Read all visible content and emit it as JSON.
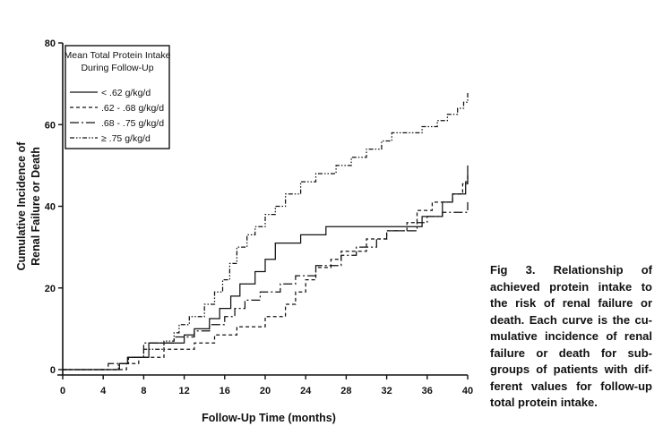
{
  "caption": "Fig 3. Relationship of achieved protein intake to the risk of renal failure or death. Each curve is the cu-mulative incidence of renal failure or death for sub-groups of patients with dif-ferent values for follow-up total protein intake.",
  "chart_data": {
    "type": "line",
    "step": true,
    "xlabel": "Follow-Up Time (months)",
    "ylabel_line1": "Cumulative Incidence of",
    "ylabel_line2": "Renal Failure or Death",
    "xlim": [
      0,
      40
    ],
    "ylim": [
      0,
      80
    ],
    "x_ticks": [
      0,
      4,
      8,
      12,
      16,
      20,
      24,
      28,
      32,
      36,
      40
    ],
    "y_ticks": [
      0,
      20,
      40,
      60,
      80
    ],
    "grid": false,
    "legend": {
      "title_line1": "Mean Total Protein Intake",
      "title_line2": "During Follow-Up",
      "placement": "top-left"
    },
    "series": [
      {
        "name": "< .62 g/kg/d",
        "dash": "solid",
        "points": [
          [
            0,
            0
          ],
          [
            5.6,
            0
          ],
          [
            5.6,
            1.5
          ],
          [
            6.4,
            1.5
          ],
          [
            6.4,
            3
          ],
          [
            8.5,
            3
          ],
          [
            8.5,
            6.5
          ],
          [
            12,
            6.5
          ],
          [
            12,
            8.5
          ],
          [
            13,
            8.5
          ],
          [
            13,
            10
          ],
          [
            14.5,
            10
          ],
          [
            14.5,
            12.5
          ],
          [
            15.5,
            12.5
          ],
          [
            15.5,
            15
          ],
          [
            16.6,
            15
          ],
          [
            16.6,
            18
          ],
          [
            17.5,
            18
          ],
          [
            17.5,
            21
          ],
          [
            19,
            21
          ],
          [
            19,
            24
          ],
          [
            20,
            24
          ],
          [
            20,
            27
          ],
          [
            21,
            27
          ],
          [
            21,
            31
          ],
          [
            23.5,
            31
          ],
          [
            23.5,
            33
          ],
          [
            26,
            33
          ],
          [
            26,
            35
          ],
          [
            35.5,
            35
          ],
          [
            35.5,
            37.5
          ],
          [
            37.5,
            37.5
          ],
          [
            37.5,
            41
          ],
          [
            38.5,
            41
          ],
          [
            38.5,
            43
          ],
          [
            39.8,
            43
          ],
          [
            39.8,
            46
          ],
          [
            40,
            46
          ],
          [
            40,
            50
          ]
        ]
      },
      {
        "name": ".62 - .68 g/kg/d",
        "dash": "4,3",
        "points": [
          [
            0,
            0
          ],
          [
            6.3,
            0
          ],
          [
            6.3,
            1.5
          ],
          [
            7.5,
            1.5
          ],
          [
            7.5,
            3
          ],
          [
            10,
            3
          ],
          [
            10,
            5
          ],
          [
            13,
            5
          ],
          [
            13,
            6.5
          ],
          [
            15,
            6.5
          ],
          [
            15,
            8.5
          ],
          [
            17.2,
            8.5
          ],
          [
            17.2,
            10.5
          ],
          [
            20,
            10.5
          ],
          [
            20,
            13
          ],
          [
            22,
            13
          ],
          [
            22,
            16
          ],
          [
            23,
            16
          ],
          [
            23,
            19
          ],
          [
            24,
            19
          ],
          [
            24,
            22
          ],
          [
            25,
            22
          ],
          [
            25,
            25
          ],
          [
            26.5,
            25
          ],
          [
            26.5,
            27
          ],
          [
            27.5,
            27
          ],
          [
            27.5,
            29
          ],
          [
            30,
            29
          ],
          [
            30,
            32
          ],
          [
            32,
            32
          ],
          [
            32,
            34
          ],
          [
            34,
            34
          ],
          [
            34,
            36
          ],
          [
            35,
            36
          ],
          [
            35,
            39
          ],
          [
            36.5,
            39
          ],
          [
            36.5,
            41
          ],
          [
            38.5,
            41
          ],
          [
            38.5,
            43
          ],
          [
            39.5,
            43
          ],
          [
            39.5,
            45.5
          ],
          [
            40,
            45.5
          ],
          [
            40,
            48
          ]
        ]
      },
      {
        "name": ".68 - .75 g/kg/d",
        "dash": "10,3,2,3",
        "points": [
          [
            0,
            0
          ],
          [
            4.5,
            0
          ],
          [
            4.5,
            1.5
          ],
          [
            6.5,
            1.5
          ],
          [
            6.5,
            3
          ],
          [
            8,
            3
          ],
          [
            8,
            6.5
          ],
          [
            11,
            6.5
          ],
          [
            11,
            8
          ],
          [
            13,
            8
          ],
          [
            13,
            9.5
          ],
          [
            14.5,
            9.5
          ],
          [
            14.5,
            11
          ],
          [
            16,
            11
          ],
          [
            16,
            13
          ],
          [
            17,
            13
          ],
          [
            17,
            15
          ],
          [
            18,
            15
          ],
          [
            18,
            17
          ],
          [
            19.5,
            17
          ],
          [
            19.5,
            19
          ],
          [
            21.5,
            19
          ],
          [
            21.5,
            21
          ],
          [
            23,
            21
          ],
          [
            23,
            23
          ],
          [
            25,
            23
          ],
          [
            25,
            25.5
          ],
          [
            27.5,
            25.5
          ],
          [
            27.5,
            28
          ],
          [
            29,
            28
          ],
          [
            29,
            30
          ],
          [
            31,
            30
          ],
          [
            31,
            32
          ],
          [
            32,
            32
          ],
          [
            32,
            34
          ],
          [
            35,
            34
          ],
          [
            35,
            36
          ],
          [
            36,
            36
          ],
          [
            36,
            37.5
          ],
          [
            37.5,
            37.5
          ],
          [
            37.5,
            38.5
          ],
          [
            40,
            38.5
          ],
          [
            40,
            41
          ]
        ]
      },
      {
        "name": "≥ .75 g/kg/d",
        "dash": "5,2,1.5,2,1.5,2",
        "points": [
          [
            0,
            0
          ],
          [
            5.5,
            0
          ],
          [
            5.5,
            1.5
          ],
          [
            6.5,
            1.5
          ],
          [
            6.5,
            3
          ],
          [
            8,
            3
          ],
          [
            8,
            5
          ],
          [
            10,
            5
          ],
          [
            10,
            7
          ],
          [
            11,
            7
          ],
          [
            11,
            9
          ],
          [
            11.5,
            9
          ],
          [
            11.5,
            11
          ],
          [
            12.5,
            11
          ],
          [
            12.5,
            13
          ],
          [
            14,
            13
          ],
          [
            14,
            16
          ],
          [
            15,
            16
          ],
          [
            15,
            19
          ],
          [
            15.8,
            19
          ],
          [
            15.8,
            22
          ],
          [
            16.5,
            22
          ],
          [
            16.5,
            26
          ],
          [
            17.2,
            26
          ],
          [
            17.2,
            30
          ],
          [
            18.2,
            30
          ],
          [
            18.2,
            33
          ],
          [
            19,
            33
          ],
          [
            19,
            35
          ],
          [
            20,
            35
          ],
          [
            20,
            38
          ],
          [
            21,
            38
          ],
          [
            21,
            40
          ],
          [
            22,
            40
          ],
          [
            22,
            43
          ],
          [
            23.5,
            43
          ],
          [
            23.5,
            46
          ],
          [
            25,
            46
          ],
          [
            25,
            48
          ],
          [
            27,
            48
          ],
          [
            27,
            50
          ],
          [
            28.5,
            50
          ],
          [
            28.5,
            52
          ],
          [
            30,
            52
          ],
          [
            30,
            54
          ],
          [
            31.5,
            54
          ],
          [
            31.5,
            56
          ],
          [
            32.5,
            56
          ],
          [
            32.5,
            58
          ],
          [
            35.5,
            58
          ],
          [
            35.5,
            59.5
          ],
          [
            37,
            59.5
          ],
          [
            37,
            61
          ],
          [
            38,
            61
          ],
          [
            38,
            62.5
          ],
          [
            39,
            62.5
          ],
          [
            39,
            64
          ],
          [
            39.6,
            64
          ],
          [
            39.6,
            65.5
          ],
          [
            40,
            65.5
          ],
          [
            40,
            68
          ]
        ]
      }
    ]
  }
}
